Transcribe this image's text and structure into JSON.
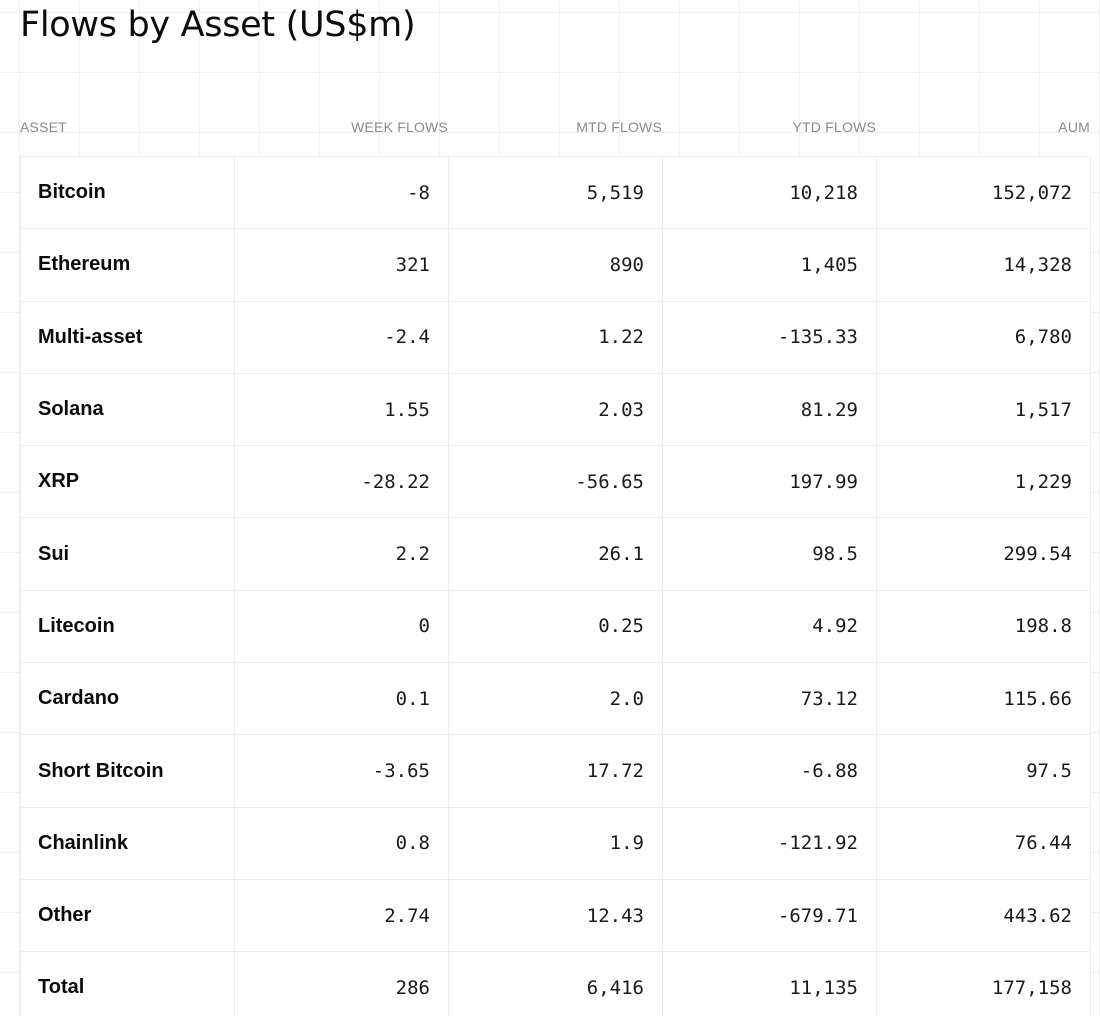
{
  "title": "Flows by Asset (US$m)",
  "table": {
    "columns": [
      "ASSET",
      "WEEK FLOWS",
      "MTD FLOWS",
      "YTD FLOWS",
      "AUM"
    ],
    "rows": [
      {
        "asset": "Bitcoin",
        "week": "-8",
        "mtd": "5,519",
        "ytd": "10,218",
        "aum": "152,072"
      },
      {
        "asset": "Ethereum",
        "week": "321",
        "mtd": "890",
        "ytd": "1,405",
        "aum": "14,328"
      },
      {
        "asset": "Multi-asset",
        "week": "-2.4",
        "mtd": "1.22",
        "ytd": "-135.33",
        "aum": "6,780"
      },
      {
        "asset": "Solana",
        "week": "1.55",
        "mtd": "2.03",
        "ytd": "81.29",
        "aum": "1,517"
      },
      {
        "asset": "XRP",
        "week": "-28.22",
        "mtd": "-56.65",
        "ytd": "197.99",
        "aum": "1,229"
      },
      {
        "asset": "Sui",
        "week": "2.2",
        "mtd": "26.1",
        "ytd": "98.5",
        "aum": "299.54"
      },
      {
        "asset": "Litecoin",
        "week": "0",
        "mtd": "0.25",
        "ytd": "4.92",
        "aum": "198.8"
      },
      {
        "asset": "Cardano",
        "week": "0.1",
        "mtd": "2.0",
        "ytd": "73.12",
        "aum": "115.66"
      },
      {
        "asset": "Short Bitcoin",
        "week": "-3.65",
        "mtd": "17.72",
        "ytd": "-6.88",
        "aum": "97.5"
      },
      {
        "asset": "Chainlink",
        "week": "0.8",
        "mtd": "1.9",
        "ytd": "-121.92",
        "aum": "76.44"
      },
      {
        "asset": "Other",
        "week": "2.74",
        "mtd": "12.43",
        "ytd": "-679.71",
        "aum": "443.62"
      },
      {
        "asset": "Total",
        "week": "286",
        "mtd": "6,416",
        "ytd": "11,135",
        "aum": "177,158"
      }
    ]
  }
}
